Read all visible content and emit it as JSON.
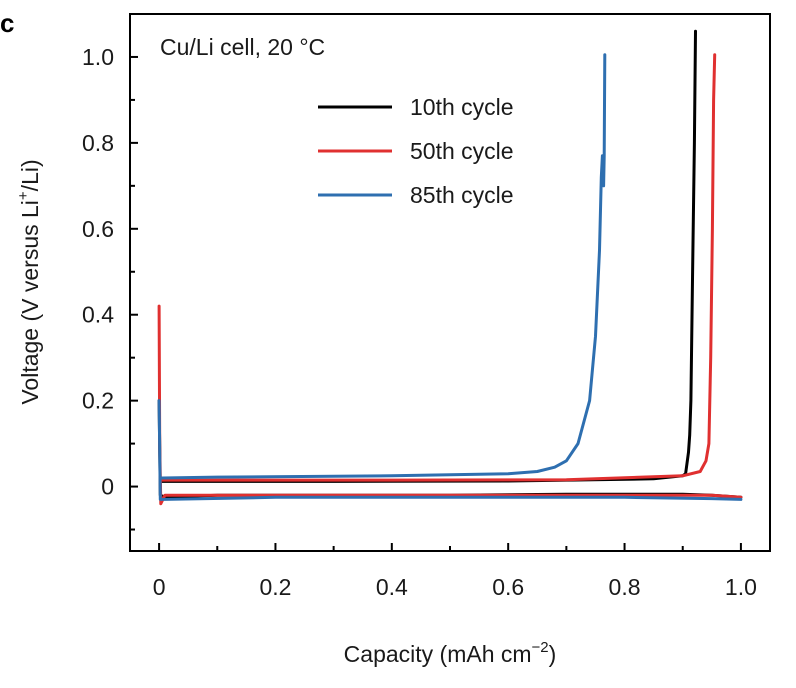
{
  "chart_data": {
    "type": "line",
    "panel_label": "c",
    "annotation": "Cu/Li cell, 20 °C",
    "xlabel": "Capacity (mAh cm",
    "xlabel_sup": "−2",
    "xlabel_close": ")",
    "ylabel": "Voltage (V versus Li",
    "ylabel_sup": "+",
    "ylabel_close": "/Li)",
    "xlim": [
      -0.05,
      1.05
    ],
    "ylim": [
      -0.15,
      1.1
    ],
    "x_ticks": [
      0,
      0.2,
      0.4,
      0.6,
      0.8,
      1.0
    ],
    "x_tick_labels": [
      "0",
      "0.2",
      "0.4",
      "0.6",
      "0.8",
      "1.0"
    ],
    "y_ticks": [
      0,
      0.2,
      0.4,
      0.6,
      0.8,
      1.0
    ],
    "y_tick_labels": [
      "0",
      "0.2",
      "0.4",
      "0.6",
      "0.8",
      "1.0"
    ],
    "grid": false,
    "legend_position": "top-center",
    "series": [
      {
        "name": "10th cycle",
        "color": "#000000",
        "segments": [
          [
            [
              0,
              0.2
            ],
            [
              0.002,
              -0.02
            ],
            [
              0.01,
              -0.025
            ],
            [
              0.1,
              -0.02
            ],
            [
              0.3,
              -0.02
            ],
            [
              0.5,
              -0.02
            ],
            [
              0.7,
              -0.018
            ],
            [
              0.9,
              -0.018
            ],
            [
              0.95,
              -0.02
            ],
            [
              1.0,
              -0.025
            ]
          ],
          [
            [
              0.005,
              0.012
            ],
            [
              0.05,
              0.012
            ],
            [
              0.3,
              0.012
            ],
            [
              0.6,
              0.013
            ],
            [
              0.85,
              0.018
            ],
            [
              0.9,
              0.025
            ],
            [
              0.905,
              0.03
            ],
            [
              0.91,
              0.08
            ],
            [
              0.912,
              0.12
            ],
            [
              0.914,
              0.2
            ],
            [
              0.917,
              0.5
            ],
            [
              0.92,
              0.8
            ],
            [
              0.922,
              1.06
            ]
          ]
        ]
      },
      {
        "name": "50th cycle",
        "color": "#e03030",
        "segments": [
          [
            [
              0,
              0.42
            ],
            [
              0.001,
              0.1
            ],
            [
              0.003,
              -0.04
            ],
            [
              0.01,
              -0.02
            ],
            [
              0.2,
              -0.02
            ],
            [
              0.5,
              -0.02
            ],
            [
              0.8,
              -0.02
            ],
            [
              0.95,
              -0.02
            ],
            [
              1.0,
              -0.025
            ]
          ],
          [
            [
              0.005,
              0.015
            ],
            [
              0.1,
              0.015
            ],
            [
              0.4,
              0.015
            ],
            [
              0.7,
              0.016
            ],
            [
              0.9,
              0.025
            ],
            [
              0.93,
              0.035
            ],
            [
              0.94,
              0.06
            ],
            [
              0.945,
              0.1
            ],
            [
              0.948,
              0.3
            ],
            [
              0.951,
              0.6
            ],
            [
              0.953,
              0.9
            ],
            [
              0.955,
              1.005
            ]
          ]
        ]
      },
      {
        "name": "85th cycle",
        "color": "#2e6fb0",
        "segments": [
          [
            [
              0,
              0.2
            ],
            [
              0.002,
              -0.03
            ],
            [
              0.01,
              -0.03
            ],
            [
              0.2,
              -0.025
            ],
            [
              0.5,
              -0.025
            ],
            [
              0.8,
              -0.025
            ],
            [
              0.95,
              -0.028
            ],
            [
              1.0,
              -0.03
            ]
          ],
          [
            [
              0.005,
              0.02
            ],
            [
              0.1,
              0.022
            ],
            [
              0.4,
              0.025
            ],
            [
              0.6,
              0.03
            ],
            [
              0.65,
              0.035
            ],
            [
              0.68,
              0.045
            ],
            [
              0.7,
              0.06
            ],
            [
              0.72,
              0.1
            ],
            [
              0.74,
              0.2
            ],
            [
              0.75,
              0.35
            ],
            [
              0.757,
              0.55
            ],
            [
              0.76,
              0.72
            ],
            [
              0.762,
              0.77
            ],
            [
              0.764,
              0.7
            ],
            [
              0.765,
              0.77
            ],
            [
              0.766,
              1.005
            ]
          ]
        ]
      }
    ]
  }
}
